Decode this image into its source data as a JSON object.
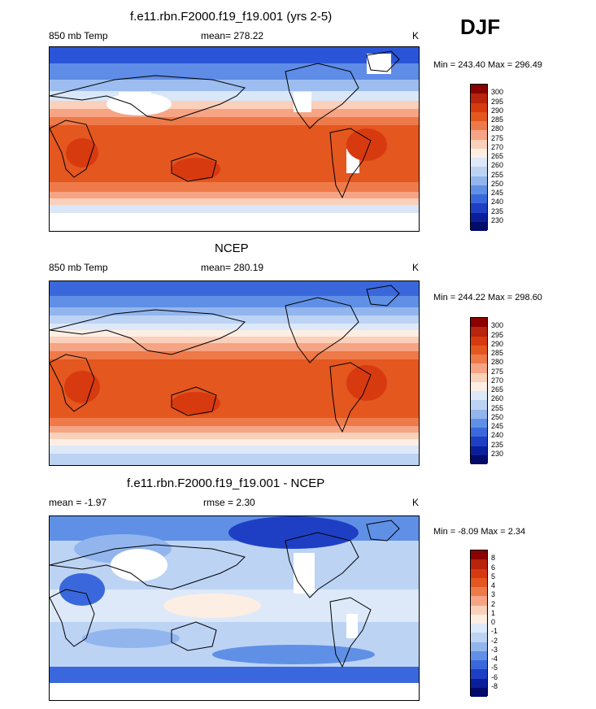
{
  "season": "DJF",
  "panels": [
    {
      "title": "f.e11.rbn.F2000.f19_f19.001 (yrs 2-5)",
      "left_label": "850 mb Temp",
      "center_label": "mean= 278.22",
      "units": "K",
      "minmax": "Min = 243.40 Max = 296.49",
      "levels": [
        "300",
        "295",
        "290",
        "285",
        "280",
        "275",
        "270",
        "265",
        "260",
        "255",
        "250",
        "245",
        "240",
        "235",
        "230"
      ]
    },
    {
      "title": "NCEP",
      "left_label": "850 mb Temp",
      "center_label": "mean= 280.19",
      "units": "K",
      "minmax": "Min = 244.22 Max = 298.60",
      "levels": [
        "300",
        "295",
        "290",
        "285",
        "280",
        "275",
        "270",
        "265",
        "260",
        "255",
        "250",
        "245",
        "240",
        "235",
        "230"
      ]
    },
    {
      "title": "f.e11.rbn.F2000.f19_f19.001 - NCEP",
      "left_label": "mean =  -1.97",
      "center_label": "rmse =   2.30",
      "units": "K",
      "minmax": "Min =  -8.09 Max =   2.34",
      "levels": [
        "8",
        "6",
        "5",
        "4",
        "3",
        "2",
        "1",
        "0",
        "-1",
        "-2",
        "-3",
        "-4",
        "-5",
        "-6",
        "-8"
      ]
    }
  ],
  "colors": {
    "abs_scale": [
      "#8b0000",
      "#b8240c",
      "#d83a10",
      "#e4571f",
      "#ee7a4a",
      "#f6a483",
      "#fbd0bb",
      "#fdeee4",
      "#dde9f8",
      "#bcd3f4",
      "#92b5ee",
      "#6090e6",
      "#3a68dc",
      "#1e3fc4",
      "#0b1f9a",
      "#020a6a"
    ],
    "diff_scale": [
      "#8b0000",
      "#b8240c",
      "#d83a10",
      "#e4571f",
      "#ee7a4a",
      "#f6a483",
      "#fbd0bb",
      "#fdeee4",
      "#dde9f8",
      "#bcd3f4",
      "#92b5ee",
      "#6090e6",
      "#3a68dc",
      "#1e3fc4",
      "#0b1f9a",
      "#020a6a"
    ]
  }
}
